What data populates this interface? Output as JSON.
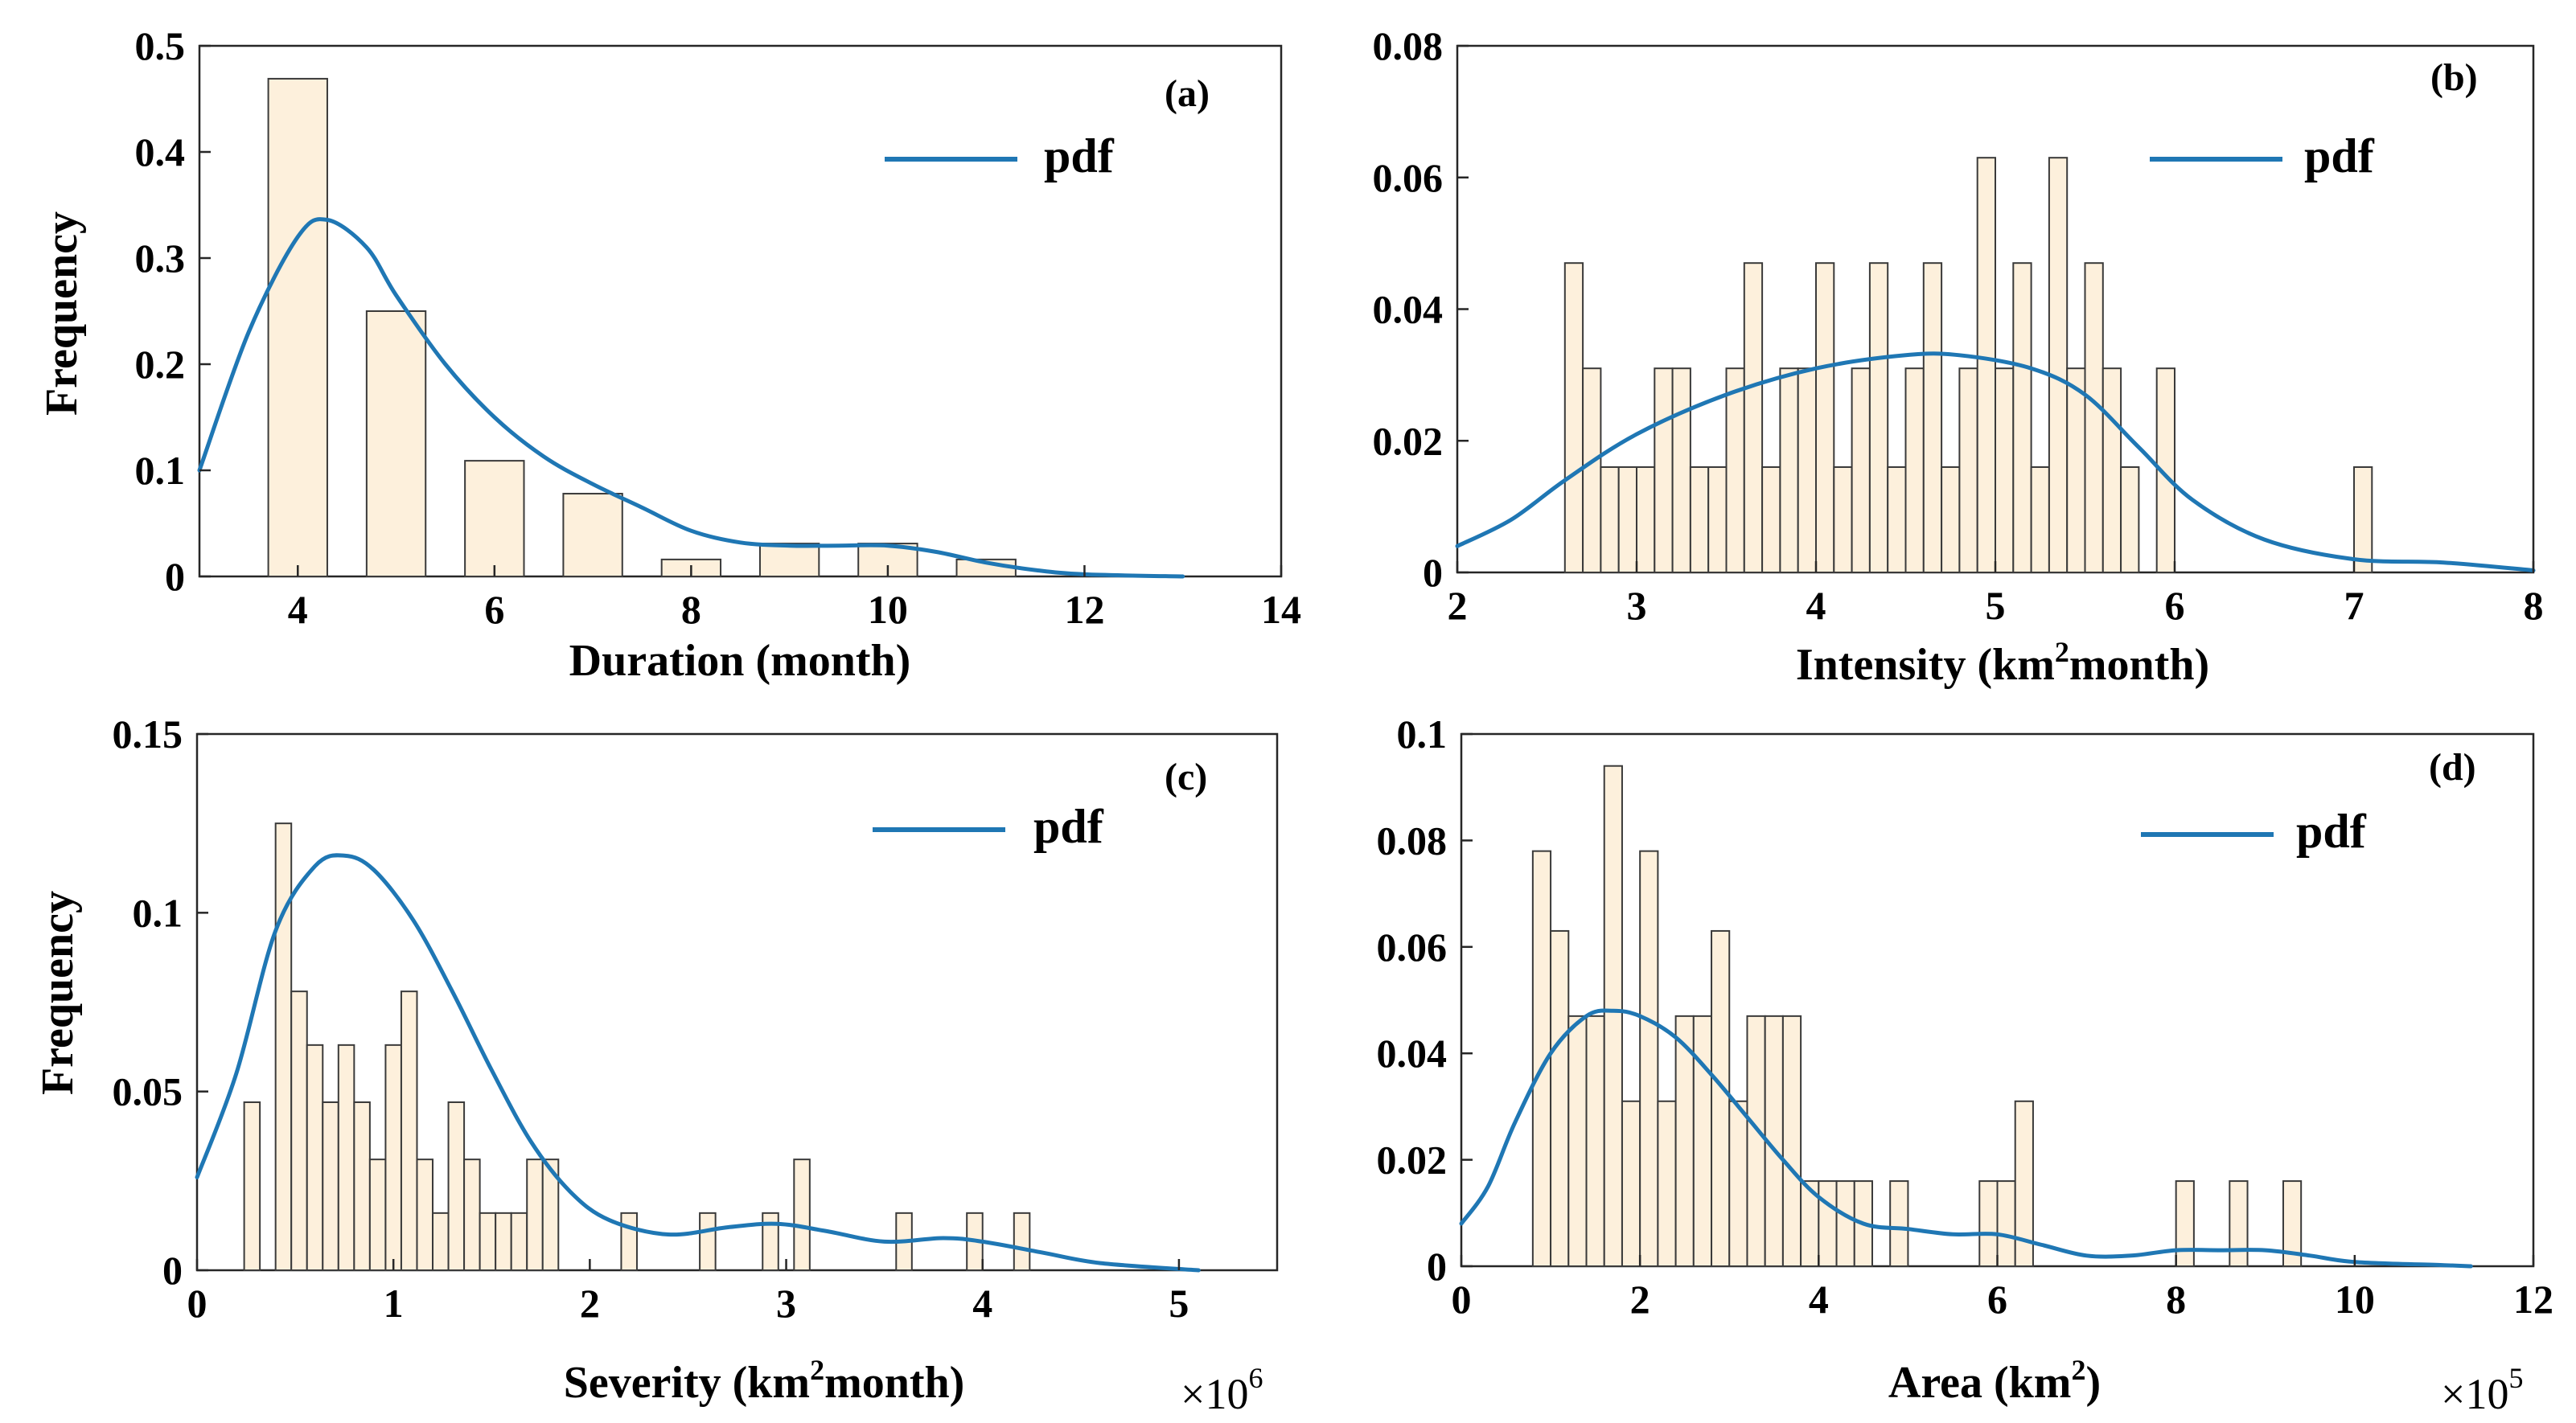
{
  "chart_data": [
    {
      "id": "a",
      "type": "bar",
      "panel_label": "(a)",
      "xlabel": "Duration (month)",
      "ylabel": "Frequency",
      "xlim": [
        3,
        14
      ],
      "ylim": [
        0,
        0.5
      ],
      "xticks": [
        4,
        6,
        8,
        10,
        12,
        14
      ],
      "yticks": [
        0,
        0.1,
        0.2,
        0.3,
        0.4,
        0.5
      ],
      "xtick_labels": [
        "4",
        "6",
        "8",
        "10",
        "12",
        "14"
      ],
      "ytick_labels": [
        "0",
        "0.1",
        "0.2",
        "0.3",
        "0.4",
        "0.5"
      ],
      "multiplier": "",
      "legend": [
        "pdf"
      ],
      "bar_width": 0.6,
      "bars": [
        {
          "x": 4,
          "y": 0.469
        },
        {
          "x": 5,
          "y": 0.25
        },
        {
          "x": 6,
          "y": 0.109
        },
        {
          "x": 7,
          "y": 0.078
        },
        {
          "x": 8,
          "y": 0.016
        },
        {
          "x": 9,
          "y": 0.031
        },
        {
          "x": 10,
          "y": 0.031
        },
        {
          "x": 11,
          "y": 0.016
        }
      ],
      "pdf": [
        [
          3,
          0.1
        ],
        [
          3.5,
          0.23
        ],
        [
          4,
          0.32
        ],
        [
          4.3,
          0.336
        ],
        [
          4.7,
          0.31
        ],
        [
          5,
          0.265
        ],
        [
          5.5,
          0.2
        ],
        [
          6,
          0.15
        ],
        [
          6.5,
          0.113
        ],
        [
          7,
          0.087
        ],
        [
          7.5,
          0.065
        ],
        [
          8,
          0.043
        ],
        [
          8.5,
          0.032
        ],
        [
          9,
          0.029
        ],
        [
          9.5,
          0.029
        ],
        [
          10,
          0.029
        ],
        [
          10.5,
          0.023
        ],
        [
          11,
          0.013
        ],
        [
          11.5,
          0.006
        ],
        [
          12,
          0.002
        ],
        [
          13,
          0.0
        ]
      ]
    },
    {
      "id": "b",
      "type": "bar",
      "panel_label": "(b)",
      "xlabel": "Intensity (km2month)",
      "ylabel": "",
      "xlim": [
        2,
        8
      ],
      "ylim": [
        0,
        0.08
      ],
      "xticks": [
        2,
        3,
        4,
        5,
        6,
        7,
        8
      ],
      "yticks": [
        0,
        0.02,
        0.04,
        0.06,
        0.08
      ],
      "xtick_labels": [
        "2",
        "3",
        "4",
        "5",
        "6",
        "7",
        "8"
      ],
      "ytick_labels": [
        "0",
        "0.02",
        "0.04",
        "0.06",
        "0.08"
      ],
      "multiplier": "",
      "legend": [
        "pdf"
      ],
      "bar_width": 0.1,
      "bars": [
        {
          "x": 2.65,
          "y": 0.047
        },
        {
          "x": 2.75,
          "y": 0.031
        },
        {
          "x": 2.85,
          "y": 0.016
        },
        {
          "x": 2.95,
          "y": 0.016
        },
        {
          "x": 3.05,
          "y": 0.016
        },
        {
          "x": 3.15,
          "y": 0.031
        },
        {
          "x": 3.25,
          "y": 0.031
        },
        {
          "x": 3.35,
          "y": 0.016
        },
        {
          "x": 3.45,
          "y": 0.016
        },
        {
          "x": 3.55,
          "y": 0.031
        },
        {
          "x": 3.65,
          "y": 0.047
        },
        {
          "x": 3.75,
          "y": 0.016
        },
        {
          "x": 3.85,
          "y": 0.031
        },
        {
          "x": 3.95,
          "y": 0.031
        },
        {
          "x": 4.05,
          "y": 0.047
        },
        {
          "x": 4.15,
          "y": 0.016
        },
        {
          "x": 4.25,
          "y": 0.031
        },
        {
          "x": 4.35,
          "y": 0.047
        },
        {
          "x": 4.45,
          "y": 0.016
        },
        {
          "x": 4.55,
          "y": 0.031
        },
        {
          "x": 4.65,
          "y": 0.047
        },
        {
          "x": 4.75,
          "y": 0.016
        },
        {
          "x": 4.85,
          "y": 0.031
        },
        {
          "x": 4.95,
          "y": 0.063
        },
        {
          "x": 5.05,
          "y": 0.031
        },
        {
          "x": 5.15,
          "y": 0.047
        },
        {
          "x": 5.25,
          "y": 0.016
        },
        {
          "x": 5.35,
          "y": 0.063
        },
        {
          "x": 5.45,
          "y": 0.031
        },
        {
          "x": 5.55,
          "y": 0.047
        },
        {
          "x": 5.65,
          "y": 0.031
        },
        {
          "x": 5.75,
          "y": 0.016
        },
        {
          "x": 5.95,
          "y": 0.031
        },
        {
          "x": 7.05,
          "y": 0.016
        }
      ],
      "pdf": [
        [
          2,
          0.004
        ],
        [
          2.3,
          0.008
        ],
        [
          2.6,
          0.014
        ],
        [
          3,
          0.021
        ],
        [
          3.5,
          0.027
        ],
        [
          4,
          0.031
        ],
        [
          4.5,
          0.033
        ],
        [
          4.8,
          0.033
        ],
        [
          5.2,
          0.031
        ],
        [
          5.5,
          0.027
        ],
        [
          5.8,
          0.019
        ],
        [
          6.1,
          0.011
        ],
        [
          6.5,
          0.005
        ],
        [
          7,
          0.002
        ],
        [
          7.5,
          0.0015
        ],
        [
          8,
          0.0003
        ]
      ]
    },
    {
      "id": "c",
      "type": "bar",
      "panel_label": "(c)",
      "xlabel": "Severity (km2month)",
      "ylabel": "Frequency",
      "xlim": [
        0,
        5.5
      ],
      "ylim": [
        0,
        0.15
      ],
      "xticks": [
        0,
        1,
        2,
        3,
        4,
        5
      ],
      "yticks": [
        0,
        0.05,
        0.1,
        0.15
      ],
      "xtick_labels": [
        "0",
        "1",
        "2",
        "3",
        "4",
        "5"
      ],
      "ytick_labels": [
        "0",
        "0.05",
        "0.1",
        "0.15"
      ],
      "multiplier": "×10",
      "multiplier_exponent": "6",
      "legend": [
        "pdf"
      ],
      "bar_width": 0.08,
      "bars": [
        {
          "x": 0.28,
          "y": 0.047
        },
        {
          "x": 0.44,
          "y": 0.125
        },
        {
          "x": 0.52,
          "y": 0.078
        },
        {
          "x": 0.6,
          "y": 0.063
        },
        {
          "x": 0.68,
          "y": 0.047
        },
        {
          "x": 0.76,
          "y": 0.063
        },
        {
          "x": 0.84,
          "y": 0.047
        },
        {
          "x": 0.92,
          "y": 0.031
        },
        {
          "x": 1.0,
          "y": 0.063
        },
        {
          "x": 1.08,
          "y": 0.078
        },
        {
          "x": 1.16,
          "y": 0.031
        },
        {
          "x": 1.24,
          "y": 0.016
        },
        {
          "x": 1.32,
          "y": 0.047
        },
        {
          "x": 1.4,
          "y": 0.031
        },
        {
          "x": 1.48,
          "y": 0.016
        },
        {
          "x": 1.56,
          "y": 0.016
        },
        {
          "x": 1.64,
          "y": 0.016
        },
        {
          "x": 1.72,
          "y": 0.031
        },
        {
          "x": 1.8,
          "y": 0.031
        },
        {
          "x": 2.2,
          "y": 0.016
        },
        {
          "x": 2.6,
          "y": 0.016
        },
        {
          "x": 2.92,
          "y": 0.016
        },
        {
          "x": 3.08,
          "y": 0.031
        },
        {
          "x": 3.6,
          "y": 0.016
        },
        {
          "x": 3.96,
          "y": 0.016
        },
        {
          "x": 4.2,
          "y": 0.016
        }
      ],
      "pdf": [
        [
          0,
          0.026
        ],
        [
          0.2,
          0.055
        ],
        [
          0.4,
          0.095
        ],
        [
          0.6,
          0.113
        ],
        [
          0.75,
          0.116
        ],
        [
          0.9,
          0.112
        ],
        [
          1.1,
          0.098
        ],
        [
          1.3,
          0.078
        ],
        [
          1.5,
          0.056
        ],
        [
          1.7,
          0.036
        ],
        [
          1.9,
          0.022
        ],
        [
          2.1,
          0.014
        ],
        [
          2.4,
          0.01
        ],
        [
          2.7,
          0.012
        ],
        [
          2.95,
          0.013
        ],
        [
          3.2,
          0.011
        ],
        [
          3.5,
          0.008
        ],
        [
          3.8,
          0.009
        ],
        [
          4.0,
          0.008
        ],
        [
          4.3,
          0.005
        ],
        [
          4.6,
          0.002
        ],
        [
          5.1,
          0.0
        ]
      ]
    },
    {
      "id": "d",
      "type": "bar",
      "panel_label": "(d)",
      "xlabel": "Area (km2)",
      "ylabel": "",
      "xlim": [
        0,
        12
      ],
      "ylim": [
        0,
        0.1
      ],
      "xticks": [
        0,
        2,
        4,
        6,
        8,
        10,
        12
      ],
      "yticks": [
        0,
        0.02,
        0.04,
        0.06,
        0.08,
        0.1
      ],
      "xtick_labels": [
        "0",
        "2",
        "4",
        "6",
        "8",
        "10",
        "12"
      ],
      "ytick_labels": [
        "0",
        "0.02",
        "0.04",
        "0.06",
        "0.08",
        "0.1"
      ],
      "multiplier": "×10",
      "multiplier_exponent": "5",
      "legend": [
        "pdf"
      ],
      "bar_width": 0.2,
      "bars": [
        {
          "x": 0.9,
          "y": 0.078
        },
        {
          "x": 1.1,
          "y": 0.063
        },
        {
          "x": 1.3,
          "y": 0.047
        },
        {
          "x": 1.5,
          "y": 0.047
        },
        {
          "x": 1.7,
          "y": 0.094
        },
        {
          "x": 1.9,
          "y": 0.031
        },
        {
          "x": 2.1,
          "y": 0.078
        },
        {
          "x": 2.3,
          "y": 0.031
        },
        {
          "x": 2.5,
          "y": 0.047
        },
        {
          "x": 2.7,
          "y": 0.047
        },
        {
          "x": 2.9,
          "y": 0.063
        },
        {
          "x": 3.1,
          "y": 0.031
        },
        {
          "x": 3.3,
          "y": 0.047
        },
        {
          "x": 3.5,
          "y": 0.047
        },
        {
          "x": 3.7,
          "y": 0.047
        },
        {
          "x": 3.9,
          "y": 0.016
        },
        {
          "x": 4.1,
          "y": 0.016
        },
        {
          "x": 4.3,
          "y": 0.016
        },
        {
          "x": 4.5,
          "y": 0.016
        },
        {
          "x": 4.9,
          "y": 0.016
        },
        {
          "x": 5.9,
          "y": 0.016
        },
        {
          "x": 6.1,
          "y": 0.016
        },
        {
          "x": 6.3,
          "y": 0.031
        },
        {
          "x": 8.1,
          "y": 0.016
        },
        {
          "x": 8.7,
          "y": 0.016
        },
        {
          "x": 9.3,
          "y": 0.016
        }
      ],
      "pdf": [
        [
          0,
          0.008
        ],
        [
          0.3,
          0.015
        ],
        [
          0.6,
          0.027
        ],
        [
          1.0,
          0.04
        ],
        [
          1.4,
          0.047
        ],
        [
          1.7,
          0.048
        ],
        [
          2.0,
          0.047
        ],
        [
          2.4,
          0.043
        ],
        [
          2.8,
          0.036
        ],
        [
          3.2,
          0.028
        ],
        [
          3.6,
          0.02
        ],
        [
          4.0,
          0.013
        ],
        [
          4.5,
          0.008
        ],
        [
          5.0,
          0.007
        ],
        [
          5.5,
          0.006
        ],
        [
          6.0,
          0.006
        ],
        [
          6.5,
          0.004
        ],
        [
          7.0,
          0.002
        ],
        [
          7.5,
          0.002
        ],
        [
          8.0,
          0.003
        ],
        [
          8.5,
          0.003
        ],
        [
          9.0,
          0.003
        ],
        [
          9.5,
          0.002
        ],
        [
          10.0,
          0.0008
        ],
        [
          11.0,
          0.0002
        ],
        [
          11.3,
          0.0
        ]
      ]
    }
  ]
}
